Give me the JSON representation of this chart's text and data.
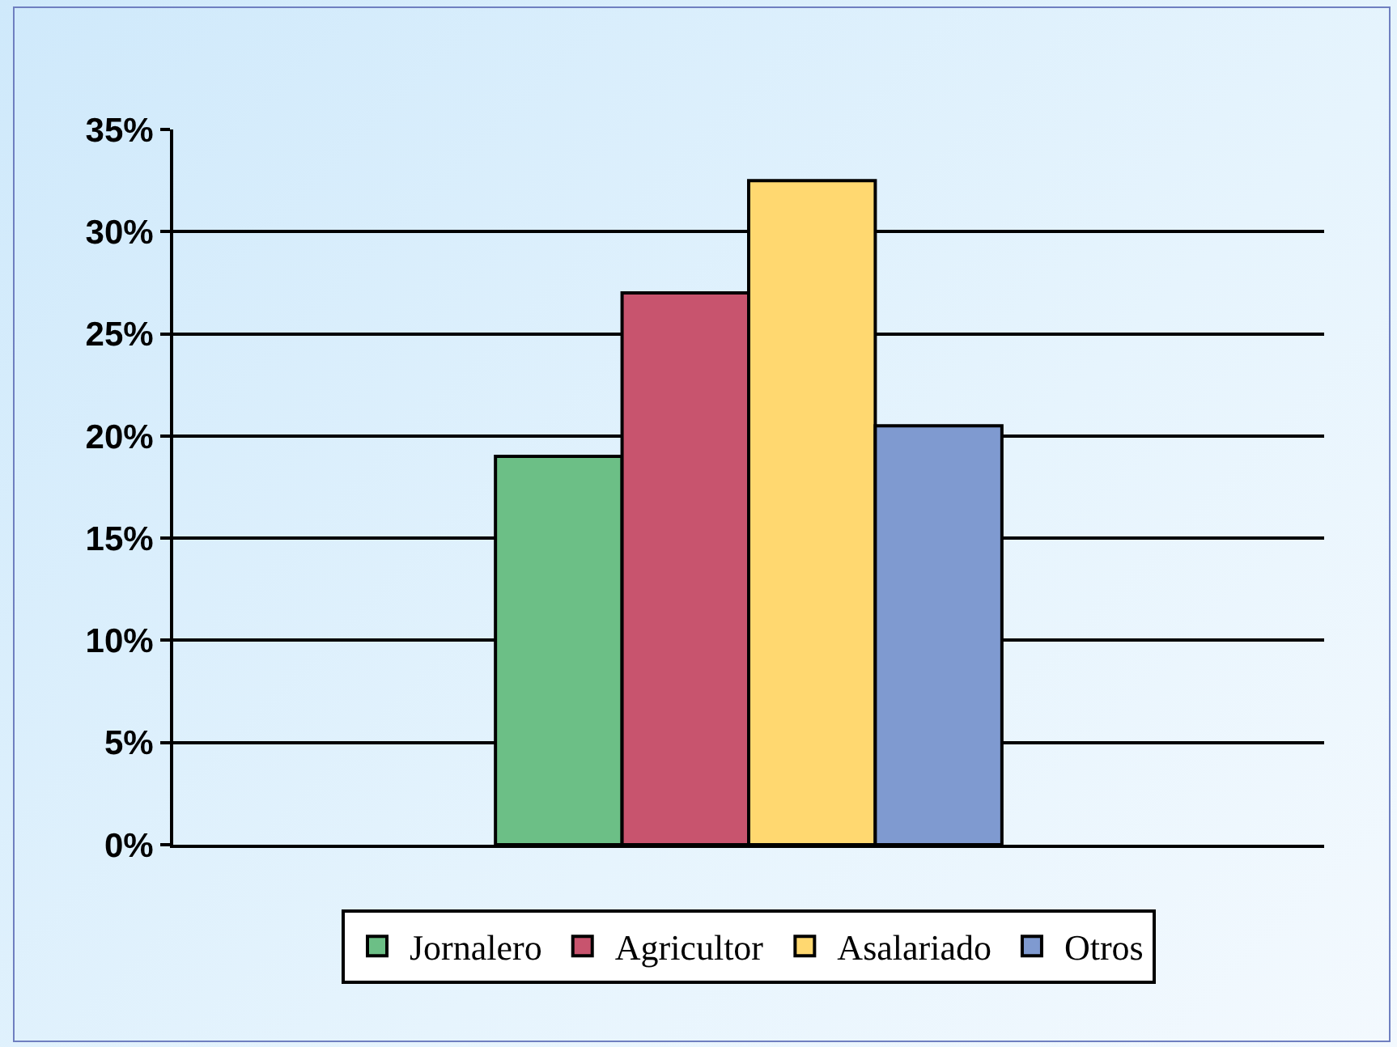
{
  "chart_data": {
    "type": "bar",
    "categories": [
      null
    ],
    "series": [
      {
        "name": "Jornalero",
        "color": "#6cbf86",
        "values": [
          19
        ]
      },
      {
        "name": "Agricultor",
        "color": "#c8546e",
        "values": [
          27
        ]
      },
      {
        "name": "Asalariado",
        "color": "#ffd870",
        "values": [
          32.5
        ]
      },
      {
        "name": "Otros",
        "color": "#7f9ad0",
        "values": [
          20.5
        ]
      }
    ],
    "ylim": [
      0,
      35
    ],
    "yticks": [
      {
        "value": 0,
        "label": "0%"
      },
      {
        "value": 5,
        "label": "5%"
      },
      {
        "value": 10,
        "label": "10%"
      },
      {
        "value": 15,
        "label": "15%"
      },
      {
        "value": 20,
        "label": "20%"
      },
      {
        "value": 25,
        "label": "25%"
      },
      {
        "value": 30,
        "label": "30%"
      },
      {
        "value": 35,
        "label": "35%"
      }
    ],
    "grid": "y",
    "legend": "bottom"
  }
}
